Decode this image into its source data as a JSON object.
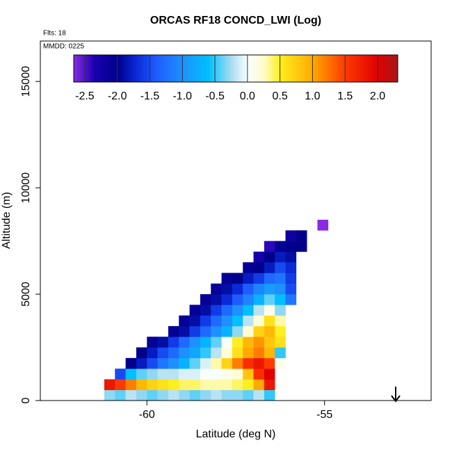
{
  "chart_data": {
    "type": "heatmap",
    "title": "ORCAS RF18 CONCD_LWI (Log)",
    "flights_label": "Flts: 18",
    "date_label": "MMDD: 0225",
    "xlabel": "Latitude (deg N)",
    "ylabel": "Altitude (m)",
    "xlim": [
      -63,
      -52
    ],
    "xticks": [
      -60,
      -55
    ],
    "ylim": [
      0,
      16900
    ],
    "yticks": [
      0,
      5000,
      10000,
      15000
    ],
    "x": [
      -61.05,
      -60.75,
      -60.45,
      -60.15,
      -59.85,
      -59.55,
      -59.25,
      -58.95,
      -58.65,
      -58.35,
      -58.05,
      -57.75,
      -57.45,
      -57.15,
      -56.85,
      -56.55,
      -56.25,
      -55.95,
      -55.65,
      -55.35,
      -55.05
    ],
    "y": [
      250,
      750,
      1250,
      1750,
      2250,
      2750,
      3250,
      3750,
      4250,
      4750,
      5250,
      5750,
      6250,
      6750,
      7250,
      7750,
      8250
    ],
    "z": [
      [
        -0.3,
        -0.4,
        -0.2,
        -0.3,
        -0.4,
        -0.3,
        -0.2,
        -0.3,
        -0.4,
        -0.3,
        -0.2,
        -0.3,
        -0.3,
        -0.4,
        -0.2,
        -0.5,
        null,
        null,
        null,
        null,
        null
      ],
      [
        1.8,
        1.5,
        1.2,
        0.9,
        0.7,
        0.6,
        0.5,
        0.4,
        0.4,
        0.3,
        0.3,
        0.3,
        0.4,
        0.5,
        1.0,
        1.8,
        null,
        null,
        null,
        null,
        null
      ],
      [
        null,
        -1.5,
        -0.6,
        -0.4,
        -0.3,
        -0.2,
        -0.2,
        -0.1,
        -0.1,
        0,
        0,
        0.1,
        0.2,
        0.8,
        1.6,
        2.0,
        null,
        null,
        null,
        null,
        null
      ],
      [
        null,
        null,
        -2.0,
        -1.8,
        -1.5,
        -1.2,
        -1.0,
        -0.7,
        -0.4,
        -0.1,
        0.3,
        0.7,
        1.2,
        1.6,
        1.8,
        1.5,
        0.1,
        null,
        null,
        null,
        null
      ],
      [
        null,
        null,
        null,
        -2.0,
        -1.8,
        -1.5,
        -1.3,
        -1.0,
        -0.8,
        -0.5,
        -0.2,
        0.2,
        0.6,
        1.0,
        1.2,
        0.9,
        -0.5,
        null,
        null,
        null,
        null
      ],
      [
        null,
        null,
        null,
        null,
        -2.1,
        -1.9,
        -1.6,
        -1.3,
        -1.0,
        -0.7,
        -0.4,
        0,
        0.5,
        0.9,
        1.1,
        0.8,
        0.6,
        null,
        null,
        null,
        null
      ],
      [
        null,
        null,
        null,
        null,
        null,
        null,
        -2.1,
        -1.9,
        -1.6,
        -1.3,
        -1.0,
        -0.7,
        -0.3,
        0.2,
        0.7,
        0.9,
        0.5,
        null,
        null,
        null,
        null
      ],
      [
        null,
        null,
        null,
        null,
        null,
        null,
        null,
        -2.1,
        -1.9,
        -1.6,
        -1.3,
        -1.0,
        -0.6,
        -0.2,
        0.2,
        0.6,
        0.3,
        null,
        null,
        null,
        null
      ],
      [
        null,
        null,
        null,
        null,
        null,
        null,
        null,
        null,
        -2.1,
        -1.9,
        -1.6,
        -1.3,
        -1.0,
        -0.6,
        -0.2,
        0.1,
        -0.3,
        null,
        null,
        null,
        null
      ],
      [
        null,
        null,
        null,
        null,
        null,
        null,
        null,
        null,
        null,
        -2.1,
        -1.9,
        -1.7,
        -1.4,
        -1.1,
        -0.7,
        -0.4,
        -0.6,
        -1.2,
        null,
        null,
        null
      ],
      [
        null,
        null,
        null,
        null,
        null,
        null,
        null,
        null,
        null,
        null,
        -2.1,
        -1.9,
        -1.7,
        -1.4,
        -1.1,
        -0.9,
        -1.0,
        -1.5,
        null,
        null,
        null
      ],
      [
        null,
        null,
        null,
        null,
        null,
        null,
        null,
        null,
        null,
        null,
        null,
        -2.1,
        -2.0,
        -1.8,
        -1.6,
        -1.3,
        -1.2,
        -1.6,
        null,
        null,
        null
      ],
      [
        null,
        null,
        null,
        null,
        null,
        null,
        null,
        null,
        null,
        null,
        null,
        null,
        null,
        -2.1,
        -2.0,
        -1.8,
        -1.5,
        -1.7,
        null,
        null,
        null
      ],
      [
        null,
        null,
        null,
        null,
        null,
        null,
        null,
        null,
        null,
        null,
        null,
        null,
        null,
        null,
        -2.3,
        -2.0,
        -1.8,
        -1.9,
        null,
        null,
        null
      ],
      [
        null,
        null,
        null,
        null,
        null,
        null,
        null,
        null,
        null,
        null,
        null,
        null,
        null,
        null,
        null,
        -2.4,
        -2.1,
        -2.0,
        -2.0,
        null,
        null
      ],
      [
        null,
        null,
        null,
        null,
        null,
        null,
        null,
        null,
        null,
        null,
        null,
        null,
        null,
        null,
        null,
        null,
        null,
        -2.2,
        -2.0,
        null,
        null
      ],
      [
        null,
        null,
        null,
        null,
        null,
        null,
        null,
        null,
        null,
        null,
        null,
        null,
        null,
        null,
        null,
        null,
        null,
        null,
        null,
        null,
        -2.7
      ]
    ],
    "colorbar_lim": [
      -2.67,
      2.31
    ],
    "colorbar_ticks": [
      -2.5,
      {
        "value": -2,
        "label": "-2.0"
      },
      -1.5,
      {
        "value": -1,
        "label": "-1.0"
      },
      -0.5,
      {
        "value": 0,
        "label": "0.0"
      },
      0.5,
      {
        "value": 1,
        "label": "1.0"
      },
      1.5,
      {
        "value": 2,
        "label": "2.0"
      }
    ],
    "colorscale": [
      [
        -2.67,
        "#8a2be2"
      ],
      [
        -2.35,
        "#1a00b0"
      ],
      [
        -2.0,
        "#00008b"
      ],
      [
        -1.7,
        "#0a2ad8"
      ],
      [
        -1.4,
        "#1e5cff"
      ],
      [
        -1.0,
        "#1e90ff"
      ],
      [
        -0.6,
        "#00bfff"
      ],
      [
        -0.25,
        "#a8dcf0"
      ],
      [
        0,
        "#f8ffff"
      ],
      [
        0.25,
        "#fffccc"
      ],
      [
        0.5,
        "#ffee20"
      ],
      [
        1.0,
        "#ffaa00"
      ],
      [
        1.5,
        "#ff3a00"
      ],
      [
        2.0,
        "#e00000"
      ],
      [
        2.31,
        "#a81818"
      ]
    ]
  }
}
